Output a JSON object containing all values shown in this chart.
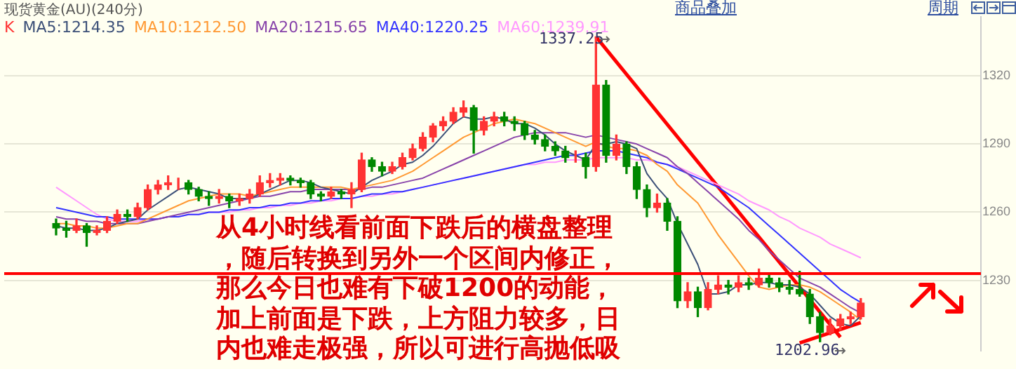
{
  "chart_data": {
    "type": "candlestick",
    "title": "现货黄金(AU)(240分)",
    "categories": [
      null,
      null,
      null,
      null,
      null,
      null,
      null,
      null,
      null,
      null,
      null,
      null,
      null,
      null,
      null,
      null,
      null,
      null,
      null,
      null,
      null,
      null,
      null,
      null,
      null,
      null,
      null,
      null,
      null,
      null,
      null,
      null,
      null,
      null,
      null,
      null,
      null,
      null,
      null,
      null,
      null,
      null,
      null,
      null,
      null,
      null,
      null,
      null,
      null,
      null,
      null,
      null,
      null,
      null,
      null,
      null,
      null,
      null,
      null,
      null,
      null,
      null,
      null,
      null,
      null,
      null,
      null,
      null,
      null,
      null,
      null,
      null,
      null,
      null,
      null,
      null,
      null,
      null,
      null,
      null
    ],
    "ylim": [
      1199,
      1346
    ],
    "yticks": [
      1230,
      1260,
      1290,
      1320
    ],
    "grid": "y",
    "tick_labels": "y",
    "series": [
      {
        "name": "K",
        "colors": [
          "#008800",
          "#008800",
          "#ff3333",
          "#008800",
          "#ff3333",
          "#ff3333",
          "#ff3333",
          "#008800",
          "#ff3333",
          "#ff3333",
          "#ff3333",
          "#ff3333",
          "#ff3333",
          "#008800",
          "#008800",
          "#008800",
          "#ff3333",
          "#008800",
          "#ff3333",
          "#ff3333",
          "#ff3333",
          "#ff3333",
          "#ff3333",
          "#008800",
          "#008800",
          "#008800",
          "#008800",
          "#ff3333",
          "#008800",
          "#ff3333",
          "#ff3333",
          "#008800",
          "#008800",
          "#ff3333",
          "#ff3333",
          "#ff3333",
          "#ff3333",
          "#ff3333",
          "#ff3333",
          "#ff3333",
          "#ff3333",
          "#008800",
          "#ff3333",
          "#ff3333",
          "#008800",
          "#008800",
          "#008800",
          "#008800",
          "#008800",
          "#008800",
          "#008800",
          "#ff3333",
          "#008800",
          "#ff3333",
          "#008800",
          "#ff3333",
          "#008800",
          "#008800",
          "#008800",
          "#ff3333",
          "#008800",
          "#008800",
          "#ff3333",
          "#008800",
          "#ff3333",
          "#ff3333",
          "#008800",
          "#ff3333",
          "#008800",
          "#ff3333",
          "#008800",
          "#008800",
          "#008800",
          "#008800",
          "#008800",
          "#008800",
          "#ff3333",
          "#ff3333",
          "#ff3333",
          "#ff3333"
        ],
        "ohlc": [
          [
            1255,
            1257,
            1250,
            1253
          ],
          [
            1253,
            1256,
            1249,
            1252
          ],
          [
            1252,
            1257,
            1251,
            1254
          ],
          [
            1254,
            1255,
            1245,
            1251
          ],
          [
            1251,
            1254,
            1250,
            1252
          ],
          [
            1252,
            1258,
            1251,
            1256
          ],
          [
            1256,
            1261,
            1255,
            1259
          ],
          [
            1259,
            1261,
            1256,
            1258
          ],
          [
            1258,
            1264,
            1257,
            1262
          ],
          [
            1262,
            1272,
            1261,
            1270
          ],
          [
            1270,
            1274,
            1268,
            1272
          ],
          [
            1272,
            1276,
            1270,
            1273
          ],
          [
            1273,
            1275,
            1270,
            1273
          ],
          [
            1273,
            1274,
            1268,
            1270
          ],
          [
            1270,
            1271,
            1265,
            1267
          ],
          [
            1267,
            1269,
            1263,
            1266
          ],
          [
            1266,
            1270,
            1264,
            1267
          ],
          [
            1267,
            1268,
            1262,
            1265
          ],
          [
            1265,
            1268,
            1263,
            1266
          ],
          [
            1266,
            1270,
            1264,
            1268
          ],
          [
            1268,
            1276,
            1267,
            1273
          ],
          [
            1273,
            1277,
            1271,
            1274
          ],
          [
            1274,
            1277,
            1272,
            1275
          ],
          [
            1275,
            1276,
            1272,
            1274
          ],
          [
            1274,
            1275,
            1271,
            1273
          ],
          [
            1273,
            1274,
            1266,
            1268
          ],
          [
            1268,
            1269,
            1265,
            1267
          ],
          [
            1267,
            1271,
            1266,
            1269
          ],
          [
            1269,
            1270,
            1266,
            1268
          ],
          [
            1268,
            1273,
            1262,
            1270
          ],
          [
            1270,
            1286,
            1269,
            1283
          ],
          [
            1283,
            1284,
            1278,
            1280
          ],
          [
            1280,
            1282,
            1276,
            1278
          ],
          [
            1278,
            1282,
            1277,
            1280
          ],
          [
            1280,
            1286,
            1279,
            1284
          ],
          [
            1284,
            1290,
            1283,
            1288
          ],
          [
            1288,
            1295,
            1287,
            1293
          ],
          [
            1293,
            1299,
            1291,
            1298
          ],
          [
            1298,
            1302,
            1296,
            1300
          ],
          [
            1300,
            1306,
            1299,
            1304
          ],
          [
            1304,
            1309,
            1302,
            1306
          ],
          [
            1306,
            1307,
            1286,
            1296
          ],
          [
            1296,
            1302,
            1294,
            1300
          ],
          [
            1300,
            1304,
            1298,
            1302
          ],
          [
            1302,
            1304,
            1298,
            1300
          ],
          [
            1300,
            1302,
            1296,
            1299
          ],
          [
            1299,
            1300,
            1292,
            1294
          ],
          [
            1294,
            1296,
            1290,
            1292
          ],
          [
            1292,
            1294,
            1287,
            1289
          ],
          [
            1289,
            1291,
            1285,
            1287
          ],
          [
            1287,
            1289,
            1282,
            1284
          ],
          [
            1284,
            1287,
            1282,
            1284
          ],
          [
            1284,
            1286,
            1275,
            1280
          ],
          [
            1280,
            1337.25,
            1278,
            1316
          ],
          [
            1316,
            1318,
            1282,
            1285
          ],
          [
            1285,
            1294,
            1283,
            1290
          ],
          [
            1290,
            1291,
            1277,
            1280
          ],
          [
            1280,
            1282,
            1266,
            1270
          ],
          [
            1270,
            1272,
            1258,
            1262
          ],
          [
            1262,
            1268,
            1260,
            1264
          ],
          [
            1264,
            1266,
            1252,
            1256
          ],
          [
            1256,
            1258,
            1218,
            1221
          ],
          [
            1221,
            1229,
            1218,
            1225
          ],
          [
            1225,
            1227,
            1214,
            1218
          ],
          [
            1218,
            1229,
            1217,
            1226
          ],
          [
            1226,
            1232,
            1224,
            1228
          ],
          [
            1228,
            1230,
            1224,
            1227
          ],
          [
            1227,
            1232,
            1225,
            1229
          ],
          [
            1229,
            1231,
            1226,
            1228
          ],
          [
            1228,
            1235,
            1227,
            1231
          ],
          [
            1231,
            1233,
            1227,
            1229
          ],
          [
            1229,
            1231,
            1225,
            1227
          ],
          [
            1227,
            1230,
            1224,
            1226
          ],
          [
            1226,
            1234,
            1223,
            1224
          ],
          [
            1224,
            1226,
            1211,
            1214
          ],
          [
            1214,
            1216,
            1202.96,
            1207
          ],
          [
            1207,
            1213,
            1206,
            1210
          ],
          [
            1210,
            1215,
            1208,
            1213
          ],
          [
            1213,
            1216,
            1211,
            1214
          ],
          [
            1214,
            1222,
            1213,
            1220
          ]
        ]
      },
      {
        "name": "MA5:1214.35",
        "type": "line",
        "color": "#3c5078",
        "values": [
          1254,
          1253,
          1253,
          1252,
          1252,
          1253,
          1255,
          1256,
          1257,
          1261,
          1264,
          1267,
          1270,
          1271,
          1270,
          1269,
          1268,
          1266,
          1266,
          1266,
          1268,
          1270,
          1272,
          1274,
          1274,
          1273,
          1271,
          1270,
          1269,
          1268,
          1271,
          1274,
          1276,
          1278,
          1281,
          1282,
          1285,
          1289,
          1294,
          1299,
          1302,
          1301,
          1301,
          1302,
          1301,
          1299,
          1299,
          1297,
          1294,
          1290,
          1287,
          1285,
          1283,
          1290,
          1290,
          1291,
          1290,
          1288,
          1277,
          1271,
          1266,
          1255,
          1246,
          1237,
          1224,
          1224,
          1225,
          1228,
          1228,
          1229,
          1229,
          1228,
          1228,
          1227,
          1224,
          1219,
          1214,
          1211,
          1210,
          1214.35
        ]
      },
      {
        "name": "MA10:1212.50",
        "type": "line",
        "color": "#ff9933",
        "values": [
          1255,
          1255,
          1254,
          1254,
          1253,
          1253,
          1254,
          1255,
          1255,
          1257,
          1259,
          1261,
          1263,
          1265,
          1266,
          1267,
          1268,
          1268,
          1268,
          1267,
          1268,
          1269,
          1270,
          1271,
          1271,
          1271,
          1271,
          1271,
          1271,
          1270,
          1271,
          1272,
          1273,
          1274,
          1276,
          1278,
          1281,
          1284,
          1287,
          1290,
          1293,
          1295,
          1297,
          1299,
          1300,
          1301,
          1300,
          1299,
          1297,
          1295,
          1293,
          1291,
          1289,
          1291,
          1289,
          1288,
          1288,
          1287,
          1285,
          1281,
          1278,
          1272,
          1268,
          1264,
          1257,
          1250,
          1244,
          1238,
          1232,
          1227,
          1226,
          1227,
          1228,
          1228,
          1227,
          1225,
          1222,
          1219,
          1216,
          1212.5
        ]
      },
      {
        "name": "MA20:1215.65",
        "type": "line",
        "color": "#8844aa",
        "values": [
          1258,
          1257,
          1257,
          1256,
          1256,
          1255,
          1255,
          1255,
          1255,
          1256,
          1257,
          1258,
          1259,
          1260,
          1261,
          1262,
          1263,
          1264,
          1265,
          1266,
          1267,
          1267,
          1268,
          1269,
          1269,
          1270,
          1270,
          1270,
          1270,
          1270,
          1270,
          1271,
          1271,
          1272,
          1273,
          1274,
          1275,
          1277,
          1279,
          1281,
          1283,
          1285,
          1287,
          1289,
          1291,
          1293,
          1294,
          1295,
          1295,
          1295,
          1295,
          1294,
          1293,
          1294,
          1293,
          1292,
          1291,
          1290,
          1288,
          1286,
          1284,
          1280,
          1277,
          1273,
          1269,
          1265,
          1261,
          1257,
          1252,
          1248,
          1243,
          1239,
          1235,
          1231,
          1229,
          1227,
          1224,
          1221,
          1218,
          1215.65
        ]
      },
      {
        "name": "MA40:1220.25",
        "type": "line",
        "color": "#3333ff",
        "values": [
          1262,
          1261,
          1260,
          1259,
          1258,
          1258,
          1257,
          1257,
          1257,
          1257,
          1257,
          1258,
          1258,
          1259,
          1259,
          1260,
          1260,
          1261,
          1261,
          1262,
          1262,
          1263,
          1263,
          1264,
          1264,
          1265,
          1265,
          1266,
          1266,
          1266,
          1267,
          1268,
          1268,
          1269,
          1269,
          1270,
          1271,
          1272,
          1273,
          1274,
          1275,
          1276,
          1277,
          1278,
          1279,
          1280,
          1281,
          1282,
          1283,
          1284,
          1285,
          1285,
          1286,
          1287,
          1287,
          1287,
          1286,
          1285,
          1284,
          1282,
          1281,
          1279,
          1277,
          1275,
          1273,
          1271,
          1268,
          1265,
          1262,
          1258,
          1254,
          1250,
          1246,
          1242,
          1238,
          1234,
          1230,
          1226,
          1223,
          1220.25
        ]
      },
      {
        "name": "MA60:1239.91",
        "type": "line",
        "color": "#ff99ff",
        "values": [
          1271,
          1268,
          1265,
          1262,
          1259,
          1257,
          1256,
          1256,
          1256,
          1257,
          1257,
          1258,
          1258,
          1259,
          1259,
          1260,
          1260,
          1260,
          1261,
          1261,
          1262,
          1262,
          1263,
          1263,
          1264,
          1264,
          1265,
          1265,
          1266,
          1266,
          1267,
          1267,
          1268,
          1268,
          1269,
          1270,
          1271,
          1272,
          1273,
          1274,
          1275,
          1276,
          1277,
          1278,
          1279,
          1280,
          1281,
          1281,
          1282,
          1282,
          1283,
          1283,
          1283,
          1284,
          1284,
          1284,
          1284,
          1283,
          1283,
          1282,
          1281,
          1280,
          1278,
          1276,
          1274,
          1272,
          1270,
          1268,
          1265,
          1263,
          1261,
          1258,
          1256,
          1253,
          1251,
          1249,
          1246,
          1244,
          1242,
          1239.91
        ]
      },
      {
        "type": "line",
        "color": "#ff0000",
        "values": [
          null,
          null,
          null,
          null,
          null,
          null,
          null,
          null,
          null,
          null,
          null,
          null,
          null,
          null,
          null,
          null,
          null,
          null,
          null,
          null,
          null,
          null,
          null,
          null,
          null,
          null,
          null,
          null,
          null,
          null,
          null,
          null,
          null,
          null,
          null,
          null,
          null,
          null,
          null,
          null,
          null,
          null,
          null,
          null,
          null,
          null,
          null,
          null,
          null,
          null,
          null,
          null,
          null,
          1337.25,
          null,
          null,
          null,
          null,
          null,
          null,
          null,
          null,
          null,
          null,
          null,
          null,
          null,
          null,
          null,
          null,
          null,
          null,
          null,
          null,
          null,
          null,
          null,
          1205,
          null,
          null
        ]
      },
      {
        "type": "line",
        "color": "#ff0000",
        "values": [
          null,
          null,
          null,
          null,
          null,
          null,
          null,
          null,
          null,
          null,
          null,
          null,
          null,
          null,
          null,
          null,
          null,
          null,
          null,
          null,
          null,
          null,
          null,
          null,
          null,
          null,
          null,
          null,
          null,
          null,
          null,
          null,
          null,
          null,
          null,
          null,
          null,
          null,
          null,
          null,
          null,
          null,
          null,
          null,
          null,
          null,
          null,
          null,
          null,
          null,
          null,
          null,
          null,
          null,
          null,
          null,
          null,
          null,
          null,
          null,
          null,
          null,
          null,
          null,
          null,
          null,
          null,
          null,
          null,
          null,
          null,
          null,
          null,
          1202.4,
          null,
          null,
          null,
          null,
          null,
          1211.4
        ]
      }
    ],
    "ref_lines": [
      {
        "axis": "y",
        "value": 1233,
        "color": "#ff0000"
      }
    ],
    "annotations": [
      "从4小时线看前面下跌后的横盘整理",
      "，随后转换到另外一个区间内修正，",
      "那么今日也难有下破1200的动能，",
      "加上前面是下跌，上方阻力较多，日",
      "内也难走极强，所以可进行高抛低吸",
      "商品叠加",
      "周期",
      "1337.25",
      "1202.96"
    ]
  }
}
